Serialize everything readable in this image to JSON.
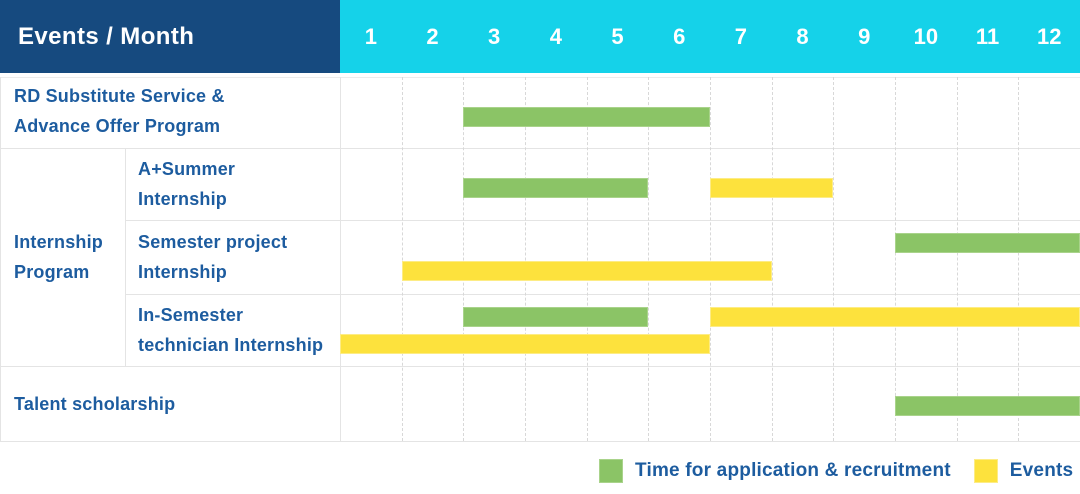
{
  "header": {
    "title": "Events / Month",
    "months": [
      "1",
      "2",
      "3",
      "4",
      "5",
      "6",
      "7",
      "8",
      "9",
      "10",
      "11",
      "12"
    ]
  },
  "colors": {
    "header_bg": "#164a7f",
    "months_bg": "#15d2e9",
    "header_text": "#ffffff",
    "label_text": "#1d5c9f",
    "green": "#8bc466",
    "green_border": "#a9d38b",
    "yellow": "#fde23d",
    "yellow_border": "#fdec85",
    "grid": "#e4e4e4",
    "grid_light": "#ececec",
    "month_grid": "#d8d8d8"
  },
  "legend": [
    {
      "label": "Time for application & recruitment",
      "color_key": "green",
      "border_key": "green_border"
    },
    {
      "label": "Events",
      "color_key": "yellow",
      "border_key": "yellow_border"
    }
  ],
  "chart_data": {
    "type": "bar",
    "variant": "gantt-schedule",
    "title": "Events / Month",
    "x_axis": {
      "label": "Month",
      "ticks": [
        1,
        2,
        3,
        4,
        5,
        6,
        7,
        8,
        9,
        10,
        11,
        12
      ],
      "range": [
        1,
        12
      ]
    },
    "series_colors": {
      "Time for application & recruitment": "#8bc466",
      "Events": "#fde23d"
    },
    "groups": [
      {
        "label": "Internship Program",
        "label_lines": [
          "Internship",
          "Program"
        ],
        "row_indexes": [
          1,
          2,
          3
        ]
      }
    ],
    "rows": [
      {
        "group": "",
        "label": "RD Substitute Service & Advance Offer Program",
        "label_lines": [
          "RD Substitute Service &",
          "Advance Offer Program"
        ],
        "bars": [
          {
            "series": "Time for application & recruitment",
            "start_month": 3,
            "end_month": 6,
            "lane": "center"
          }
        ]
      },
      {
        "group": "Internship Program",
        "label": "A+Summer Internship",
        "label_lines": [
          "A+Summer",
          "Internship"
        ],
        "bars": [
          {
            "series": "Time for application & recruitment",
            "start_month": 3,
            "end_month": 5,
            "lane": "center"
          },
          {
            "series": "Events",
            "start_month": 7,
            "end_month": 8,
            "lane": "center"
          }
        ]
      },
      {
        "group": "Internship Program",
        "label": "Semester project Internship",
        "label_lines": [
          "Semester project",
          "Internship"
        ],
        "bars": [
          {
            "series": "Time for application & recruitment",
            "start_month": 10,
            "end_month": 12,
            "lane": "top"
          },
          {
            "series": "Events",
            "start_month": 2,
            "end_month": 7,
            "lane": "bottom"
          }
        ]
      },
      {
        "group": "Internship Program",
        "label": "In-Semester technician Internship",
        "label_lines": [
          "In-Semester",
          "technician Internship"
        ],
        "bars": [
          {
            "series": "Time for application & recruitment",
            "start_month": 3,
            "end_month": 5,
            "lane": "top"
          },
          {
            "series": "Events",
            "start_month": 7,
            "end_month": 12,
            "lane": "top"
          },
          {
            "series": "Events",
            "start_month": 1,
            "end_month": 6,
            "lane": "bottom"
          }
        ]
      },
      {
        "group": "",
        "label": "Talent scholarship",
        "label_lines": [
          "Talent scholarship"
        ],
        "bars": [
          {
            "series": "Time for application & recruitment",
            "start_month": 10,
            "end_month": 12,
            "lane": "center"
          }
        ]
      }
    ],
    "legend": [
      "Time for application & recruitment",
      "Events"
    ],
    "legend_position": "bottom-right",
    "grid": true
  }
}
